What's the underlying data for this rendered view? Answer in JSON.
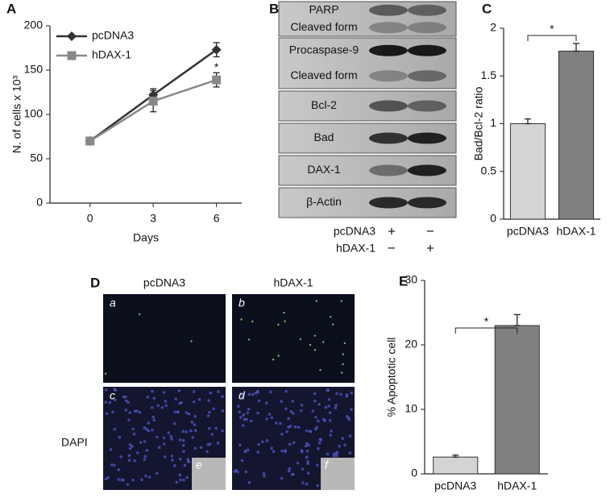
{
  "chart_data": [
    {
      "type": "line",
      "label": "A",
      "x": [
        0,
        3,
        6
      ],
      "xlim": [
        -1.9,
        7.2
      ],
      "xticks": [
        0,
        3,
        6
      ],
      "ylim": [
        0,
        200
      ],
      "yticks": [
        0,
        50,
        100,
        150,
        200
      ],
      "xlabel": "Days",
      "ylabel": "N. of cells x 10³",
      "annotation": "*",
      "series": [
        {
          "name": "pcDNA3",
          "color": "#333333",
          "marker": "diamond",
          "values": [
            70,
            122,
            173
          ],
          "errors": [
            0,
            7,
            8
          ]
        },
        {
          "name": "hDAX-1",
          "color": "#888888",
          "marker": "square",
          "values": [
            70,
            115,
            139
          ],
          "errors": [
            0,
            12,
            8
          ]
        }
      ]
    },
    {
      "type": "bar",
      "label": "C",
      "categories": [
        "pcDNA3",
        "hDAX-1"
      ],
      "values": [
        1,
        1.76
      ],
      "errors": [
        0.05,
        0.08
      ],
      "colors": [
        "#d4d4d4",
        "#808080"
      ],
      "ylim": [
        0,
        2
      ],
      "yticks": [
        0,
        0.5,
        1,
        1.5,
        2
      ],
      "ylabel": "Bad/Bcl-2 ratio",
      "annotation": "*"
    },
    {
      "type": "bar",
      "label": "E",
      "categories": [
        "pcDNA3",
        "hDAX-1"
      ],
      "values": [
        2.6,
        23
      ],
      "errors": [
        0.3,
        1.7
      ],
      "colors": [
        "#d4d4d4",
        "#808080"
      ],
      "ylim": [
        0,
        30
      ],
      "yticks": [
        0,
        10,
        20,
        30
      ],
      "ylabel": "% Apoptotic cell",
      "annotation": "*"
    }
  ],
  "blot": {
    "label": "B",
    "boxes": [
      [
        "PARP",
        "Cleaved form"
      ],
      [
        "Procaspase-9",
        "Cleaved form"
      ],
      [
        "Bcl-2"
      ],
      [
        "Bad"
      ],
      [
        "DAX-1"
      ],
      [
        "β-Actin"
      ]
    ],
    "lanes": [
      {
        "name": "pcDNA3",
        "marks": [
          "+",
          "−"
        ]
      },
      {
        "name": "hDAX-1",
        "marks": [
          "−",
          "+"
        ]
      }
    ]
  },
  "microscopy": {
    "label": "D",
    "columns": [
      "pcDNA3",
      "hDAX-1"
    ],
    "row_label": "DAPI",
    "panels": [
      "a",
      "b",
      "c",
      "d"
    ],
    "insets": [
      "e",
      "f"
    ]
  }
}
